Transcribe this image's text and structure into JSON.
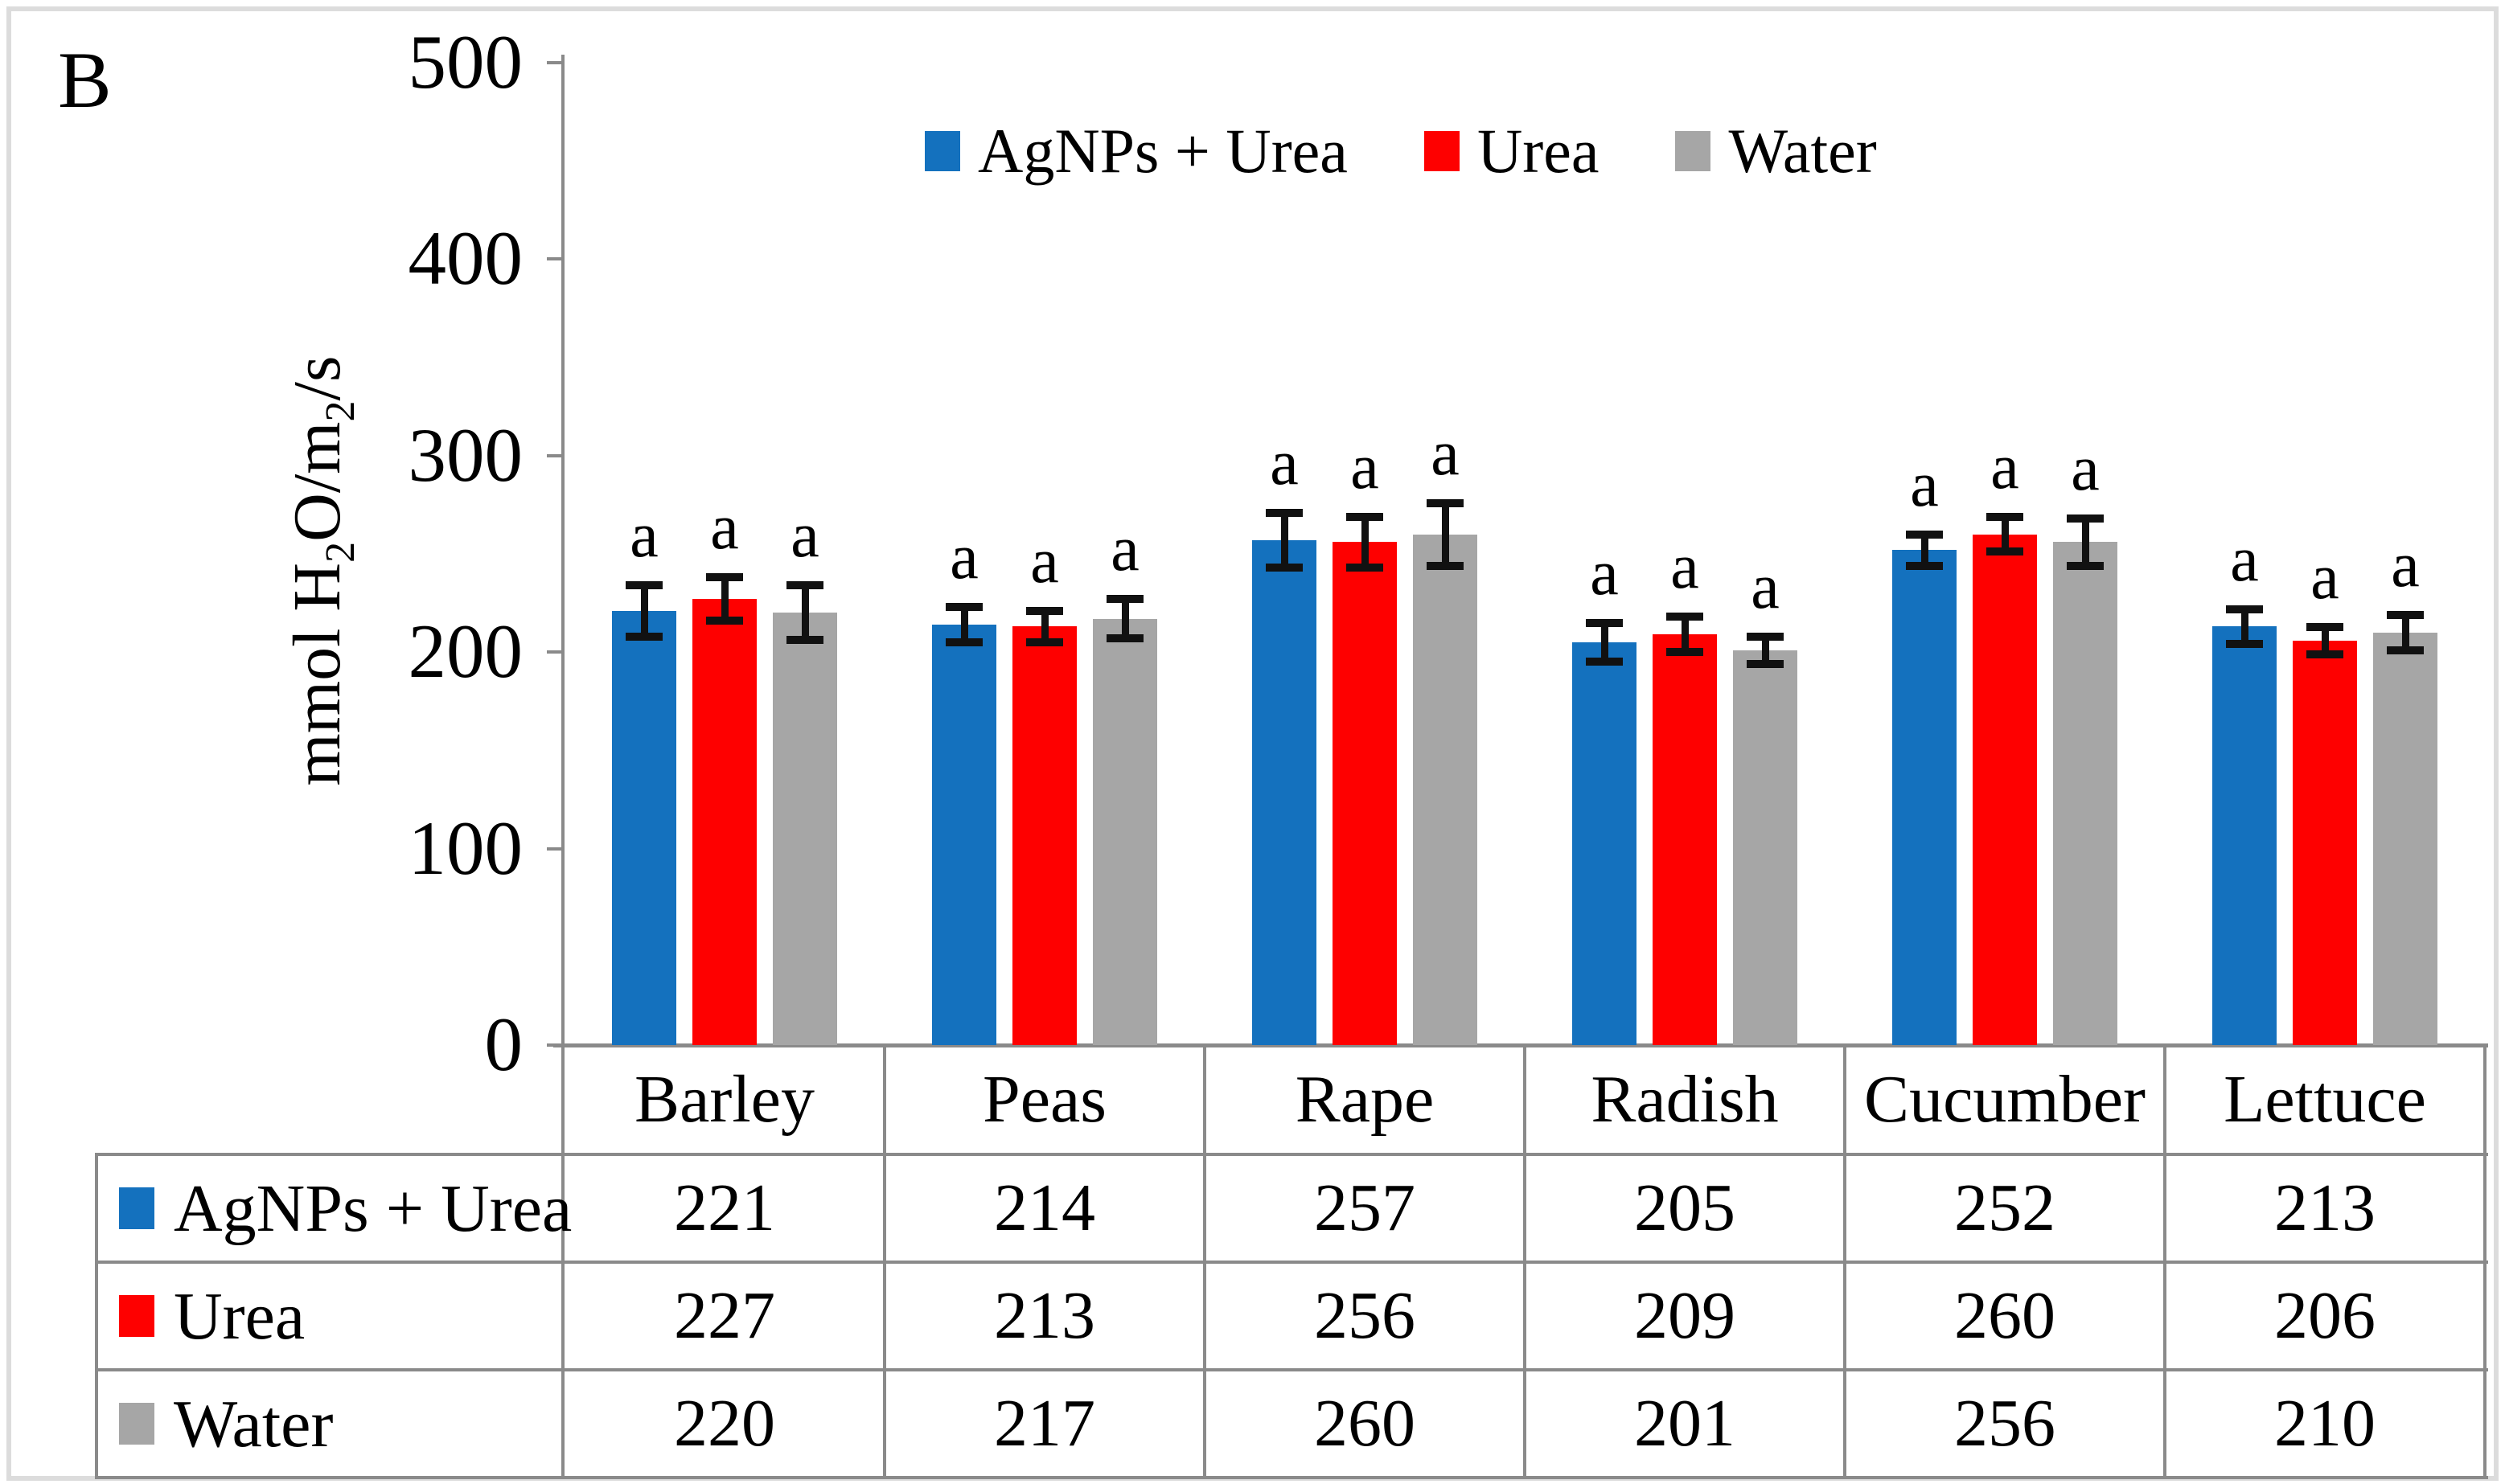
{
  "chart_data": {
    "type": "bar",
    "panel_label": "B",
    "ylabel_plain": "mmol H2O/m2/s",
    "ylabel_parts": {
      "p1": "mmol H",
      "s1": "2",
      "p2": "O/m",
      "s2": "2",
      "p3": "/s"
    },
    "ylim": [
      0,
      500
    ],
    "yticks": [
      0,
      100,
      200,
      300,
      400,
      500
    ],
    "categories": [
      "Barley",
      "Peas",
      "Rape",
      "Radish",
      "Cucumber",
      "Lettuce"
    ],
    "series": [
      {
        "name": "AgNPs + Urea",
        "color": "#1471BE",
        "values": [
          221,
          214,
          257,
          205,
          252,
          213
        ],
        "errors": [
          15,
          11,
          16,
          12,
          10,
          11
        ]
      },
      {
        "name": "Urea",
        "color": "#FE0000",
        "values": [
          227,
          213,
          256,
          209,
          260,
          206
        ],
        "errors": [
          13,
          10,
          15,
          11,
          11,
          9
        ]
      },
      {
        "name": "Water",
        "color": "#A6A6A6",
        "values": [
          220,
          217,
          260,
          201,
          256,
          210
        ],
        "errors": [
          16,
          12,
          18,
          9,
          14,
          11
        ]
      }
    ],
    "significance_label_on_every_bar": "a",
    "legend_position": "top-center",
    "grid": false,
    "data_table_shown": true
  },
  "colors": {
    "axis_line": "#8a8a8a",
    "table_line": "#8a8a8a",
    "outer_border": "#dcdcdc",
    "text": "#000000",
    "background": "#ffffff"
  }
}
